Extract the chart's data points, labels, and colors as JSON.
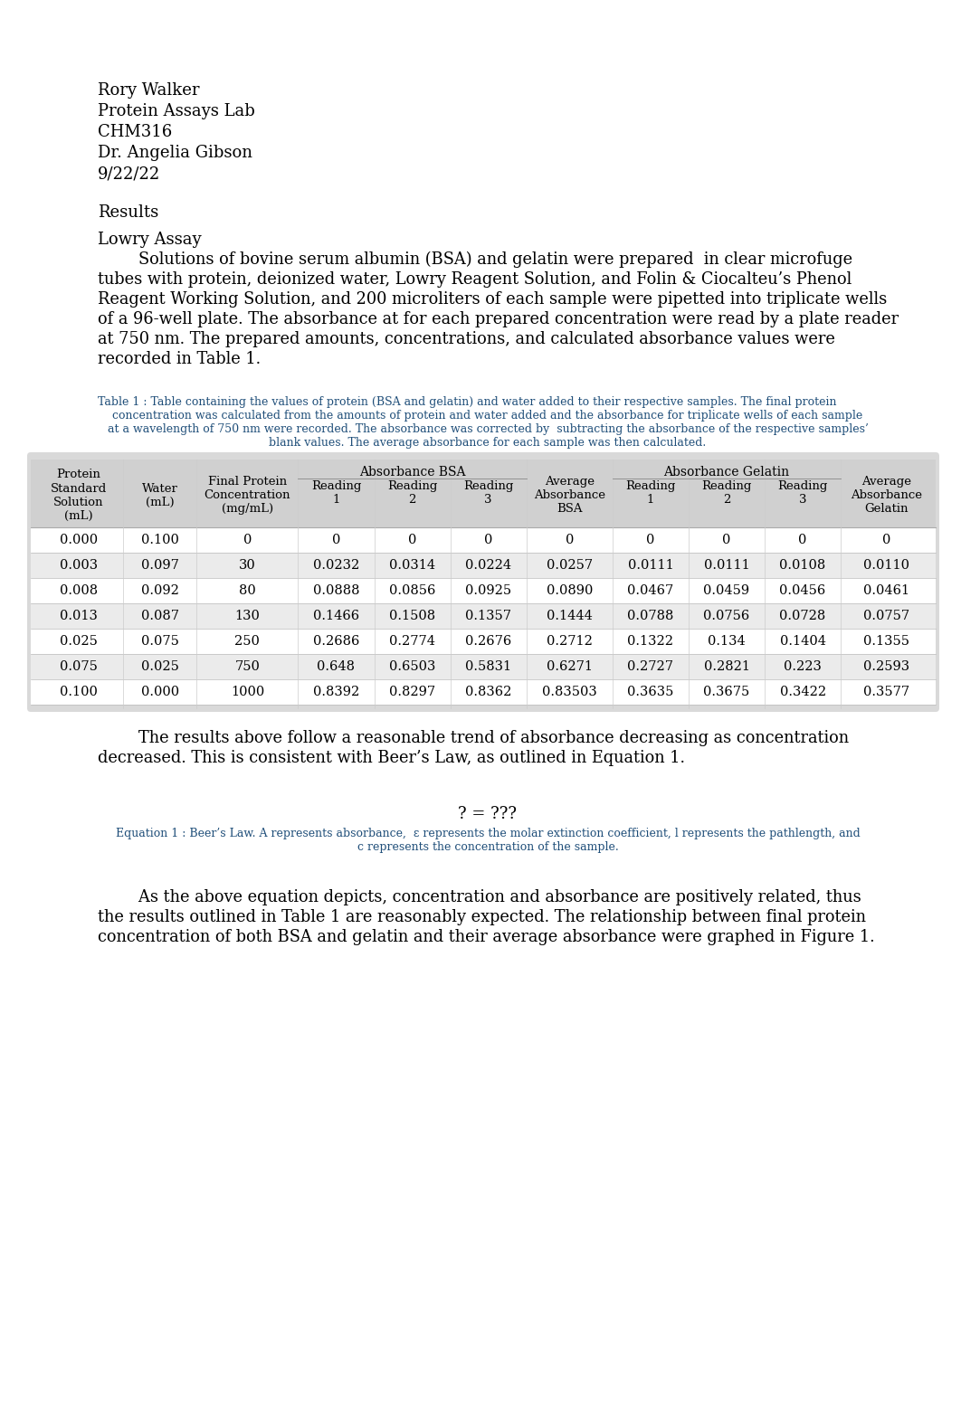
{
  "header_lines": [
    "Rory Walker",
    "Protein Assays Lab",
    "CHM316",
    "Dr. Angelia Gibson",
    "9/22/22"
  ],
  "section_results": "Results",
  "section_lowry": "Lowry Assay",
  "paragraph1_lines": [
    "        Solutions of bovine serum albumin (BSA) and gelatin were prepared  in clear microfuge",
    "tubes with protein, deionized water, Lowry Reagent Solution, and Folin & Ciocalteu’s Phenol",
    "Reagent Working Solution, and 200 microliters of each sample were pipetted into triplicate wells",
    "of a 96-well plate. The absorbance at for each prepared concentration were read by a plate reader",
    "at 750 nm. The prepared amounts, concentrations, and calculated absorbance values were",
    "recorded in Table 1."
  ],
  "table_caption_lines": [
    "Table 1 : Table containing the values of protein (BSA and gelatin) and water added to their respective samples. The final protein",
    "concentration was calculated from the amounts of protein and water added and the absorbance for triplicate wells of each sample",
    "at a wavelength of 750 nm were recorded. The absorbance was corrected by  subtracting the absorbance of the respective samples’",
    "blank values. The average absorbance for each sample was then calculated."
  ],
  "table_data": [
    [
      "0.000",
      "0.100",
      "0",
      "0",
      "0",
      "0",
      "0",
      "0",
      "0",
      "0",
      "0"
    ],
    [
      "0.003",
      "0.097",
      "30",
      "0.0232",
      "0.0314",
      "0.0224",
      "0.0257",
      "0.0111",
      "0.0111",
      "0.0108",
      "0.0110"
    ],
    [
      "0.008",
      "0.092",
      "80",
      "0.0888",
      "0.0856",
      "0.0925",
      "0.0890",
      "0.0467",
      "0.0459",
      "0.0456",
      "0.0461"
    ],
    [
      "0.013",
      "0.087",
      "130",
      "0.1466",
      "0.1508",
      "0.1357",
      "0.1444",
      "0.0788",
      "0.0756",
      "0.0728",
      "0.0757"
    ],
    [
      "0.025",
      "0.075",
      "250",
      "0.2686",
      "0.2774",
      "0.2676",
      "0.2712",
      "0.1322",
      "0.134",
      "0.1404",
      "0.1355"
    ],
    [
      "0.075",
      "0.025",
      "750",
      "0.648",
      "0.6503",
      "0.5831",
      "0.6271",
      "0.2727",
      "0.2821",
      "0.223",
      "0.2593"
    ],
    [
      "0.100",
      "0.000",
      "1000",
      "0.8392",
      "0.8297",
      "0.8362",
      "0.83503",
      "0.3635",
      "0.3675",
      "0.3422",
      "0.3577"
    ]
  ],
  "paragraph2_lines": [
    "        The results above follow a reasonable trend of absorbance decreasing as concentration",
    "decreased. This is consistent with Beer’s Law, as outlined in Equation 1."
  ],
  "equation_text": "? = ???",
  "equation_caption_lines": [
    "Equation 1 : Beer’s Law. A represents absorbance,  ε represents the molar extinction coefficient, l represents the pathlength, and",
    "c represents the concentration of the sample."
  ],
  "paragraph3_lines": [
    "        As the above equation depicts, concentration and absorbance are positively related, thus",
    "the results outlined in Table 1 are reasonably expected. The relationship between final protein",
    "concentration of both BSA and gelatin and their average absorbance were graphed in Figure 1."
  ],
  "bg_color": "#ffffff",
  "text_color": "#000000",
  "caption_color": "#1F4E79"
}
